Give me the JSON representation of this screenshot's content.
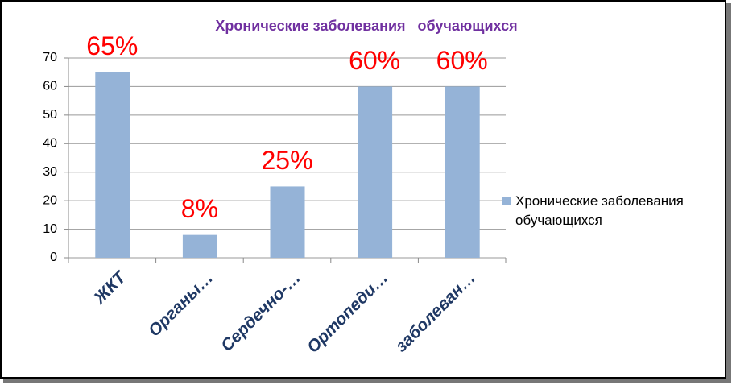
{
  "chart_data": {
    "type": "bar",
    "title": "Хронические заболевания   обучающихся",
    "categories": [
      "ЖКТ",
      "Органы…",
      "Сердечно-…",
      "Ортопеди…",
      "заболеван…"
    ],
    "series": [
      {
        "name": "Хронические заболевания обучающихся",
        "color": "#95b3d7",
        "values": [
          65,
          8,
          25,
          60,
          60
        ],
        "value_labels": [
          "65%",
          "8%",
          "25%",
          "60%",
          "60%"
        ]
      }
    ],
    "ylim": [
      0,
      70
    ],
    "yticks": [
      0,
      10,
      20,
      30,
      40,
      50,
      60,
      70
    ],
    "grid": true,
    "legend": "right"
  }
}
